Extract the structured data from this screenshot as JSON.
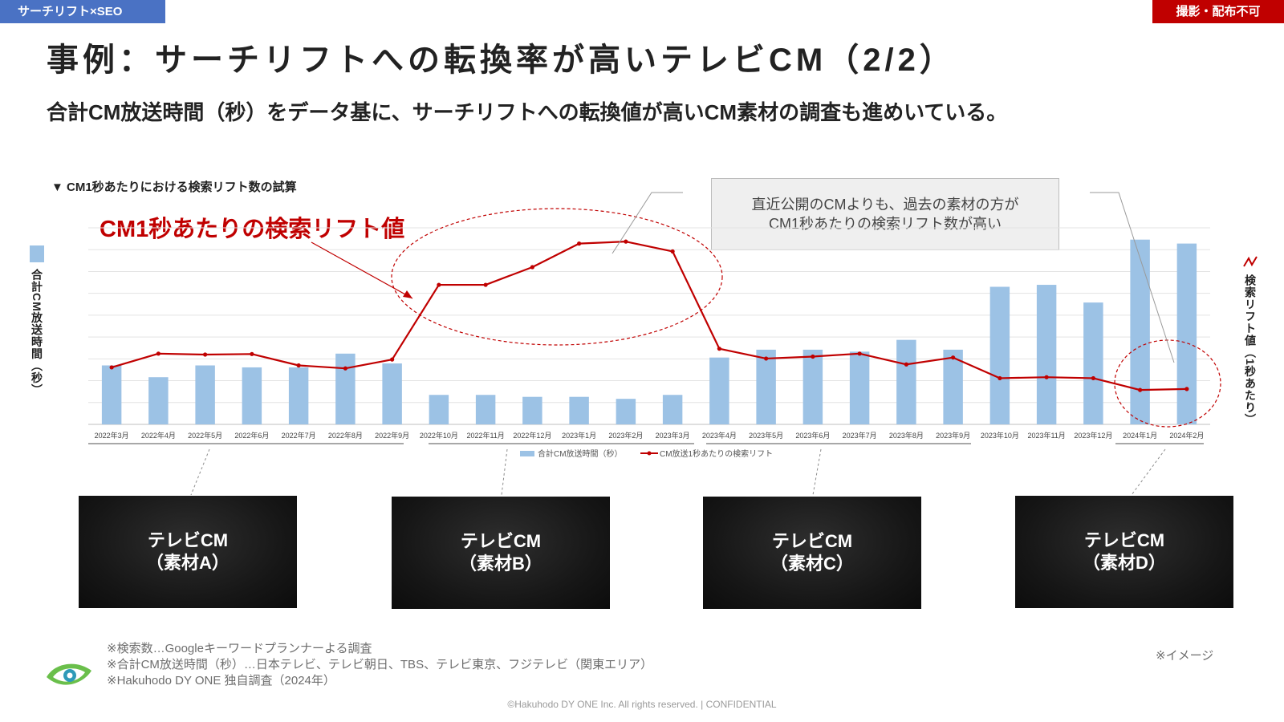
{
  "header": {
    "category_tag": "サーチリフト×SEO",
    "restriction_tag": "撮影・配布不可",
    "title": "事例：サーチリフトへの転換率が高いテレビCM（2/2）",
    "subtitle": "合計CM放送時間（秒）をデータ基に、サーチリフトへの転換値が高いCM素材の調査も進めいている。"
  },
  "chart_heading": "▼ CM1秒あたりにおける検索リフト数の試算",
  "red_callout": "CM1秒あたりの検索リフト値",
  "note_box": {
    "line1": "直近公開のCMよりも、過去の素材の方が",
    "line2": "CM1秒あたりの検索リフト数が高い"
  },
  "axes": {
    "left_label": "合計CM放送時間（秒）",
    "right_label": "検索リフト値（1秒あたり）"
  },
  "chart_data": {
    "type": "bar",
    "categories": [
      "2022年3月",
      "2022年4月",
      "2022年5月",
      "2022年6月",
      "2022年7月",
      "2022年8月",
      "2022年9月",
      "2022年10月",
      "2022年11月",
      "2022年12月",
      "2023年1月",
      "2023年2月",
      "2023年3月",
      "2023年4月",
      "2023年5月",
      "2023年6月",
      "2023年7月",
      "2023年8月",
      "2023年9月",
      "2023年10月",
      "2023年11月",
      "2023年12月",
      "2024年1月",
      "2024年2月"
    ],
    "series": [
      {
        "name": "合計CM放送時間（秒）",
        "kind": "bar",
        "color": "#9cc2e5",
        "values": [
          30,
          24,
          30,
          29,
          29,
          36,
          31,
          15,
          15,
          14,
          14,
          13,
          15,
          34,
          38,
          38,
          37,
          43,
          38,
          70,
          71,
          62,
          94,
          92
        ]
      },
      {
        "name": "CM放送1秒あたりの検索リフト",
        "kind": "line",
        "color": "#c00000",
        "values": [
          29,
          36,
          35.5,
          35.8,
          30,
          28.5,
          33,
          71,
          71,
          80,
          92,
          93,
          88,
          38.5,
          33.5,
          34.5,
          36,
          30.5,
          34,
          23.5,
          24,
          23.5,
          17.5,
          18
        ]
      }
    ],
    "ylim": [
      0,
      100
    ],
    "gridlines": 9,
    "xlabel": "",
    "ylabel": ""
  },
  "legend": {
    "bar_label": "合計CM放送時間（秒）",
    "line_label": "CM放送1秒あたりの検索リフト"
  },
  "cm_cards": [
    {
      "line1": "テレビCM",
      "line2": "（素材A）"
    },
    {
      "line1": "テレビCM",
      "line2": "（素材B）"
    },
    {
      "line1": "テレビCM",
      "line2": "（素材C）"
    },
    {
      "line1": "テレビCM",
      "line2": "（素材D）"
    }
  ],
  "footnotes": [
    "※検索数…Googleキーワードプランナーよる調査",
    "※合計CM放送時間（秒）…日本テレビ、テレビ朝日、TBS、テレビ東京、フジテレビ（関東エリア）",
    "※Hakuhodo DY ONE 独自調査（2024年）"
  ],
  "image_note": "※イメージ",
  "copyright": "©Hakuhodo DY ONE Inc. All rights reserved. | CONFIDENTIAL",
  "colors": {
    "accent_red": "#c00000",
    "bar_blue": "#9cc2e5",
    "tag_blue": "#4a72c4"
  }
}
